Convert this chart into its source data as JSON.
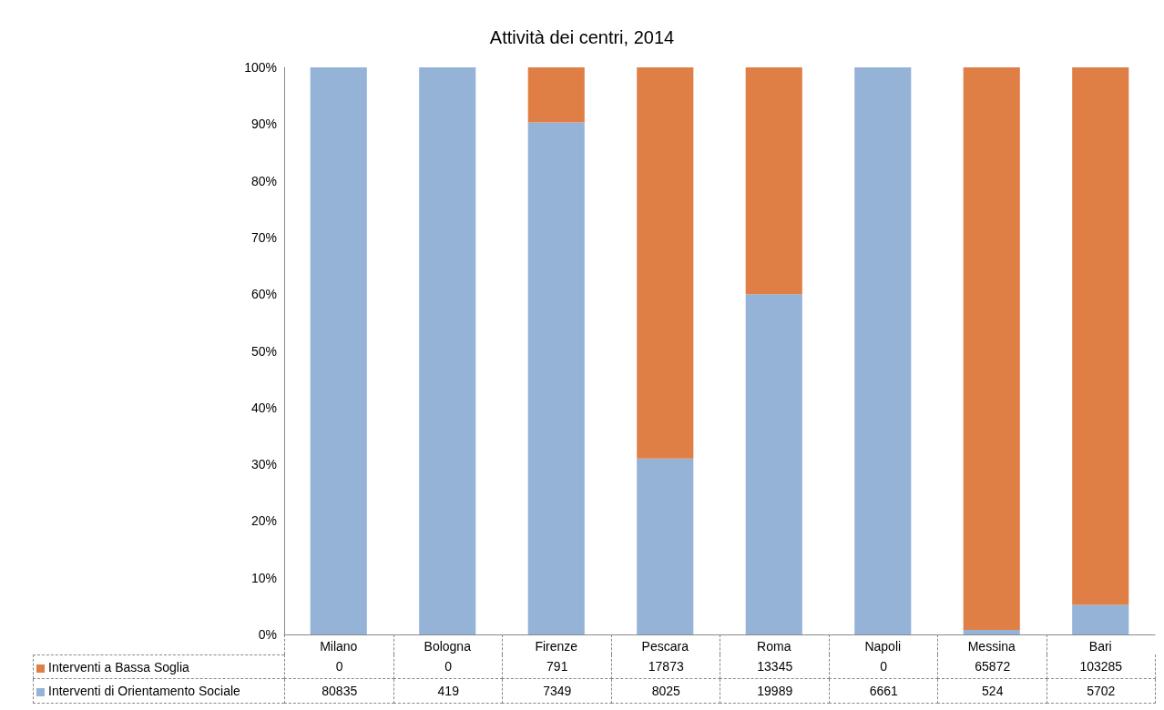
{
  "chart_data": {
    "type": "bar",
    "title": "Attività dei centri, 2014",
    "stacked": true,
    "grid": false,
    "legend": "bottom",
    "categories": [
      "Milano",
      "Bologna",
      "Firenze",
      "Pescara",
      "Roma",
      "Napoli",
      "Messina",
      "Bari"
    ],
    "ylim": [
      0,
      100
    ],
    "yticks": [
      {
        "value": 0,
        "label": "0%"
      },
      {
        "value": 10,
        "label": "10%"
      },
      {
        "value": 20,
        "label": "20%"
      },
      {
        "value": 30,
        "label": "30%"
      },
      {
        "value": 40,
        "label": "40%"
      },
      {
        "value": 50,
        "label": "50%"
      },
      {
        "value": 60,
        "label": "60%"
      },
      {
        "value": 70,
        "label": "70%"
      },
      {
        "value": 80,
        "label": "80%"
      },
      {
        "value": 90,
        "label": "90%"
      },
      {
        "value": 100,
        "label": "100%"
      }
    ],
    "series": [
      {
        "name": "Interventi di Orientamento Sociale",
        "color": "#95b3d7",
        "values": [
          100,
          100,
          90.3,
          31.0,
          60.0,
          100,
          0.8,
          5.2
        ]
      },
      {
        "name": "Interventi a Bassa Soglia",
        "color": "#e07f45",
        "values": [
          0,
          0,
          9.7,
          69.0,
          40.0,
          0,
          99.2,
          94.8
        ]
      }
    ],
    "annotations": [
      "0",
      "0",
      "791",
      "17873",
      "13345",
      "0",
      "65872",
      "103285",
      "80835",
      "419",
      "7349",
      "8025",
      "19989",
      "6661",
      "524",
      "5702"
    ]
  }
}
